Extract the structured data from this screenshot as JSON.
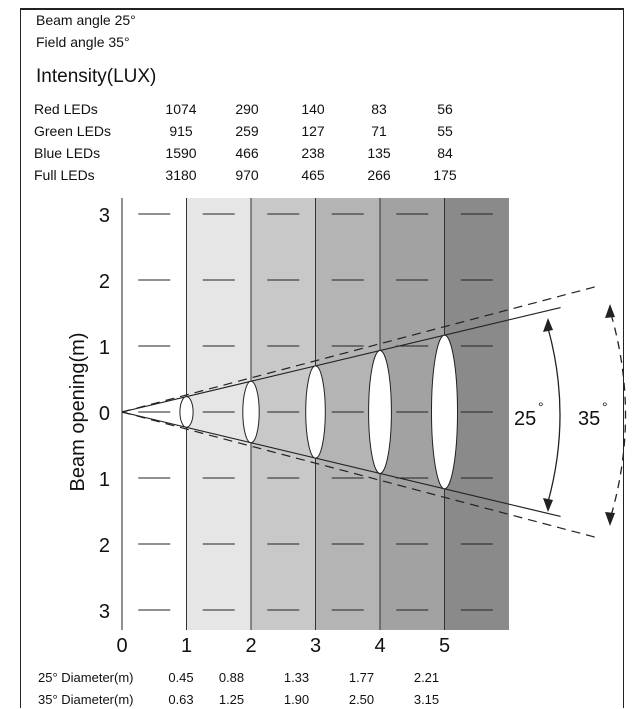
{
  "header": {
    "beam_angle": "Beam angle 25°",
    "field_angle": "Field angle 35°",
    "title": "Intensity(LUX)"
  },
  "intensity_table": {
    "rows": [
      {
        "label": "Red LEDs",
        "values": [
          "1074",
          "290",
          "140",
          "83",
          "56"
        ]
      },
      {
        "label": "Green LEDs",
        "values": [
          "915",
          "259",
          "127",
          "71",
          "55"
        ]
      },
      {
        "label": "Blue LEDs",
        "values": [
          "1590",
          "466",
          "238",
          "135",
          "84"
        ]
      },
      {
        "label": "Full LEDs",
        "values": [
          "3180",
          "970",
          "465",
          "266",
          "175"
        ]
      }
    ]
  },
  "diagram": {
    "ylabel": "Beam opening(m)",
    "y_ticks": [
      "3",
      "2",
      "1",
      "0",
      "1",
      "2",
      "3"
    ],
    "x_ticks": [
      "0",
      "1",
      "2",
      "3",
      "4",
      "5"
    ],
    "beam_label": "25",
    "field_label": "35",
    "degree": "°",
    "bands": [
      "#e6e6e6",
      "#c8c8c8",
      "#b4b4b4",
      "#a2a2a2",
      "#8a8a8a"
    ],
    "beam_angle_deg": 25,
    "field_angle_deg": 35
  },
  "diameters": {
    "beam": {
      "label": "25° Diameter(m)",
      "values": [
        "0.45",
        "0.88",
        "1.33",
        "1.77",
        "2.21"
      ]
    },
    "field": {
      "label": "35° Diameter(m)",
      "values": [
        "0.63",
        "1.25",
        "1.90",
        "2.50",
        "3.15"
      ]
    }
  }
}
